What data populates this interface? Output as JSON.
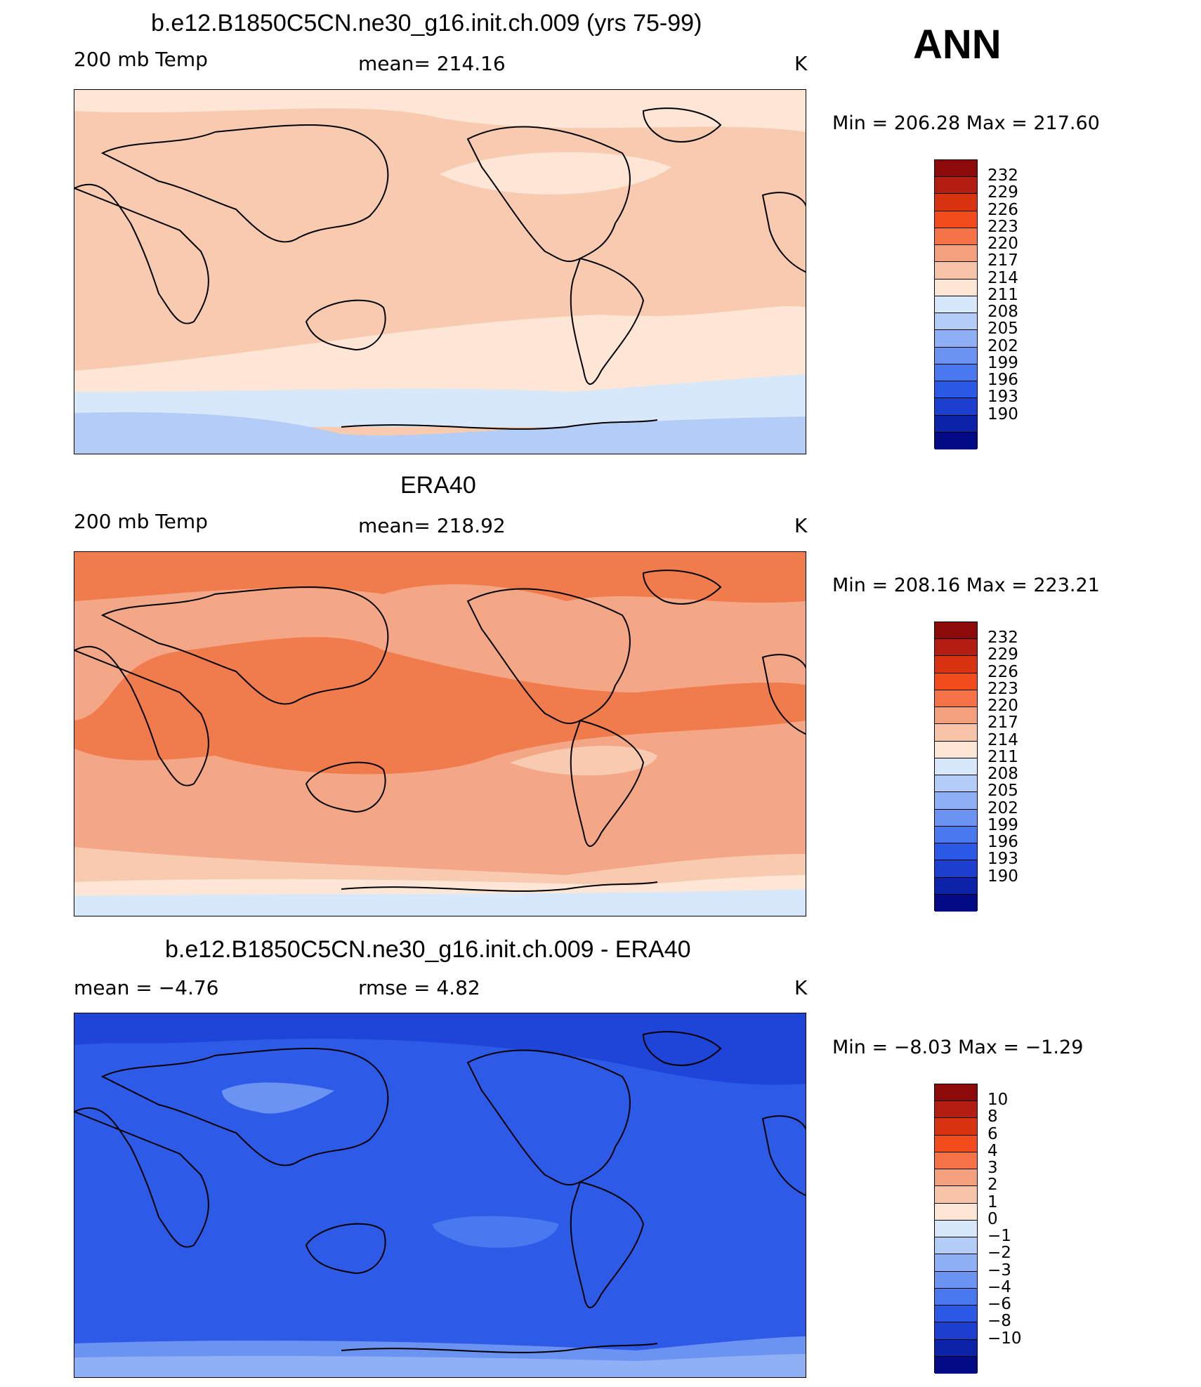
{
  "super_title": "ANN",
  "panels": [
    {
      "title": "b.e12.B1850C5CN.ne30_g16.init.ch.009 (yrs 75-99)",
      "left_label": "200 mb Temp",
      "center_label": "mean= 214.16",
      "units": "K",
      "min_max": "Min = 206.28 Max = 217.60",
      "colorbar_labels": [
        "232",
        "229",
        "226",
        "223",
        "220",
        "217",
        "214",
        "211",
        "208",
        "205",
        "202",
        "199",
        "196",
        "193",
        "190"
      ],
      "fill_base": "#f8cab0",
      "fill_bands": [
        "#fde6d6",
        "#f8cab0",
        "#fde6d6",
        "#d6e8fa",
        "#b4cdf7"
      ]
    },
    {
      "title": "ERA40",
      "left_label": "200 mb Temp",
      "center_label": "mean= 218.92",
      "units": "K",
      "min_max": "Min = 208.16 Max = 223.21",
      "colorbar_labels": [
        "232",
        "229",
        "226",
        "223",
        "220",
        "217",
        "214",
        "211",
        "208",
        "205",
        "202",
        "199",
        "196",
        "193",
        "190"
      ],
      "fill_base": "#f4a786",
      "fill_bands": [
        "#f07c4d",
        "#f4a786",
        "#f07c4d",
        "#f4a786",
        "#f8cab0",
        "#fde6d6",
        "#d6e8fa"
      ]
    },
    {
      "title": "b.e12.B1850C5CN.ne30_g16.init.ch.009 - ERA40",
      "left_label": "mean =   −4.76",
      "center_label": "rmse =    4.82",
      "units": "K",
      "min_max": "Min =   −8.03 Max =   −1.29",
      "colorbar_labels": [
        "10",
        "8",
        "6",
        "4",
        "3",
        "2",
        "1",
        "0",
        "−1",
        "−2",
        "−3",
        "−4",
        "−6",
        "−8",
        "−10"
      ],
      "fill_base": "#2d5be8",
      "fill_bands": [
        "#1e44d8",
        "#2d5be8",
        "#4a78ee",
        "#2d5be8",
        "#6a93f2",
        "#8fb0f5"
      ]
    }
  ],
  "colorbar_colors": [
    "#8c0a0a",
    "#b31d12",
    "#d93412",
    "#f24c1c",
    "#f47246",
    "#f4a07c",
    "#f8c4a8",
    "#fde6d6",
    "#d6e8fa",
    "#b4cdf7",
    "#8fb0f5",
    "#6a93f2",
    "#4a78ee",
    "#2a59e6",
    "#1c3fd0",
    "#0c22a8",
    "#020a86"
  ]
}
